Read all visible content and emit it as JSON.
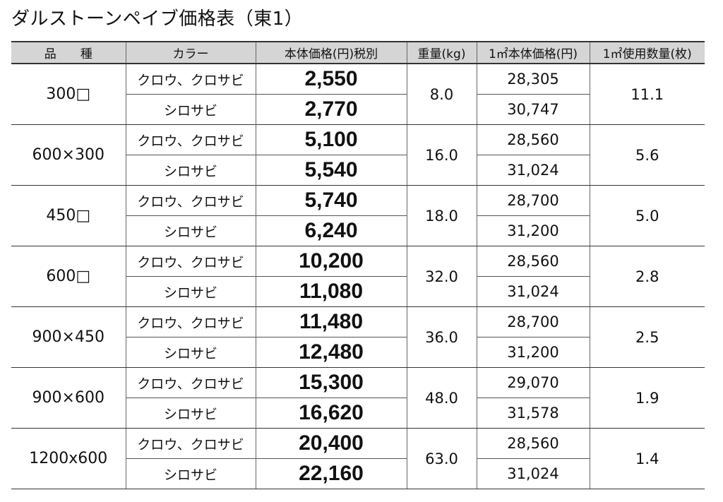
{
  "title": "ダルストーンペイブ価格表（東1）",
  "table": {
    "header": [
      "品　　種",
      "カラー",
      "本体価格(円)税別",
      "重量(kg)",
      "1㎡本体価格(円)",
      "1㎡使用数量(枚)"
    ],
    "rows": [
      {
        "size": "300□",
        "weight": "8.0",
        "count": "11.1",
        "variants": [
          {
            "color": "クロウ、クロサビ",
            "price": "2,550",
            "unit_price": "28,305"
          },
          {
            "color": "シロサビ",
            "price": "2,770",
            "unit_price": "30,747"
          }
        ]
      },
      {
        "size": "600×300",
        "weight": "16.0",
        "count": "5.6",
        "variants": [
          {
            "color": "クロウ、クロサビ",
            "price": "5,100",
            "unit_price": "28,560"
          },
          {
            "color": "シロサビ",
            "price": "5,540",
            "unit_price": "31,024"
          }
        ]
      },
      {
        "size": "450□",
        "weight": "18.0",
        "count": "5.0",
        "variants": [
          {
            "color": "クロウ、クロサビ",
            "price": "5,740",
            "unit_price": "28,700"
          },
          {
            "color": "シロサビ",
            "price": "6,240",
            "unit_price": "31,200"
          }
        ]
      },
      {
        "size": "600□",
        "weight": "32.0",
        "count": "2.8",
        "variants": [
          {
            "color": "クロウ、クロサビ",
            "price": "10,200",
            "unit_price": "28,560"
          },
          {
            "color": "シロサビ",
            "price": "11,080",
            "unit_price": "31,024"
          }
        ]
      },
      {
        "size": "900×450",
        "weight": "36.0",
        "count": "2.5",
        "variants": [
          {
            "color": "クロウ、クロサビ",
            "price": "11,480",
            "unit_price": "28,700"
          },
          {
            "color": "シロサビ",
            "price": "12,480",
            "unit_price": "31,200"
          }
        ]
      },
      {
        "size": "900×600",
        "weight": "48.0",
        "count": "1.9",
        "variants": [
          {
            "color": "クロウ、クロサビ",
            "price": "15,300",
            "unit_price": "29,070"
          },
          {
            "color": "シロサビ",
            "price": "16,620",
            "unit_price": "31,578"
          }
        ]
      },
      {
        "size": "1200x600",
        "weight": "63.0",
        "count": "1.4",
        "variants": [
          {
            "color": "クロウ、クロサビ",
            "price": "20,400",
            "unit_price": "28,560"
          },
          {
            "color": "シロサビ",
            "price": "22,160",
            "unit_price": "31,024"
          }
        ]
      }
    ]
  }
}
